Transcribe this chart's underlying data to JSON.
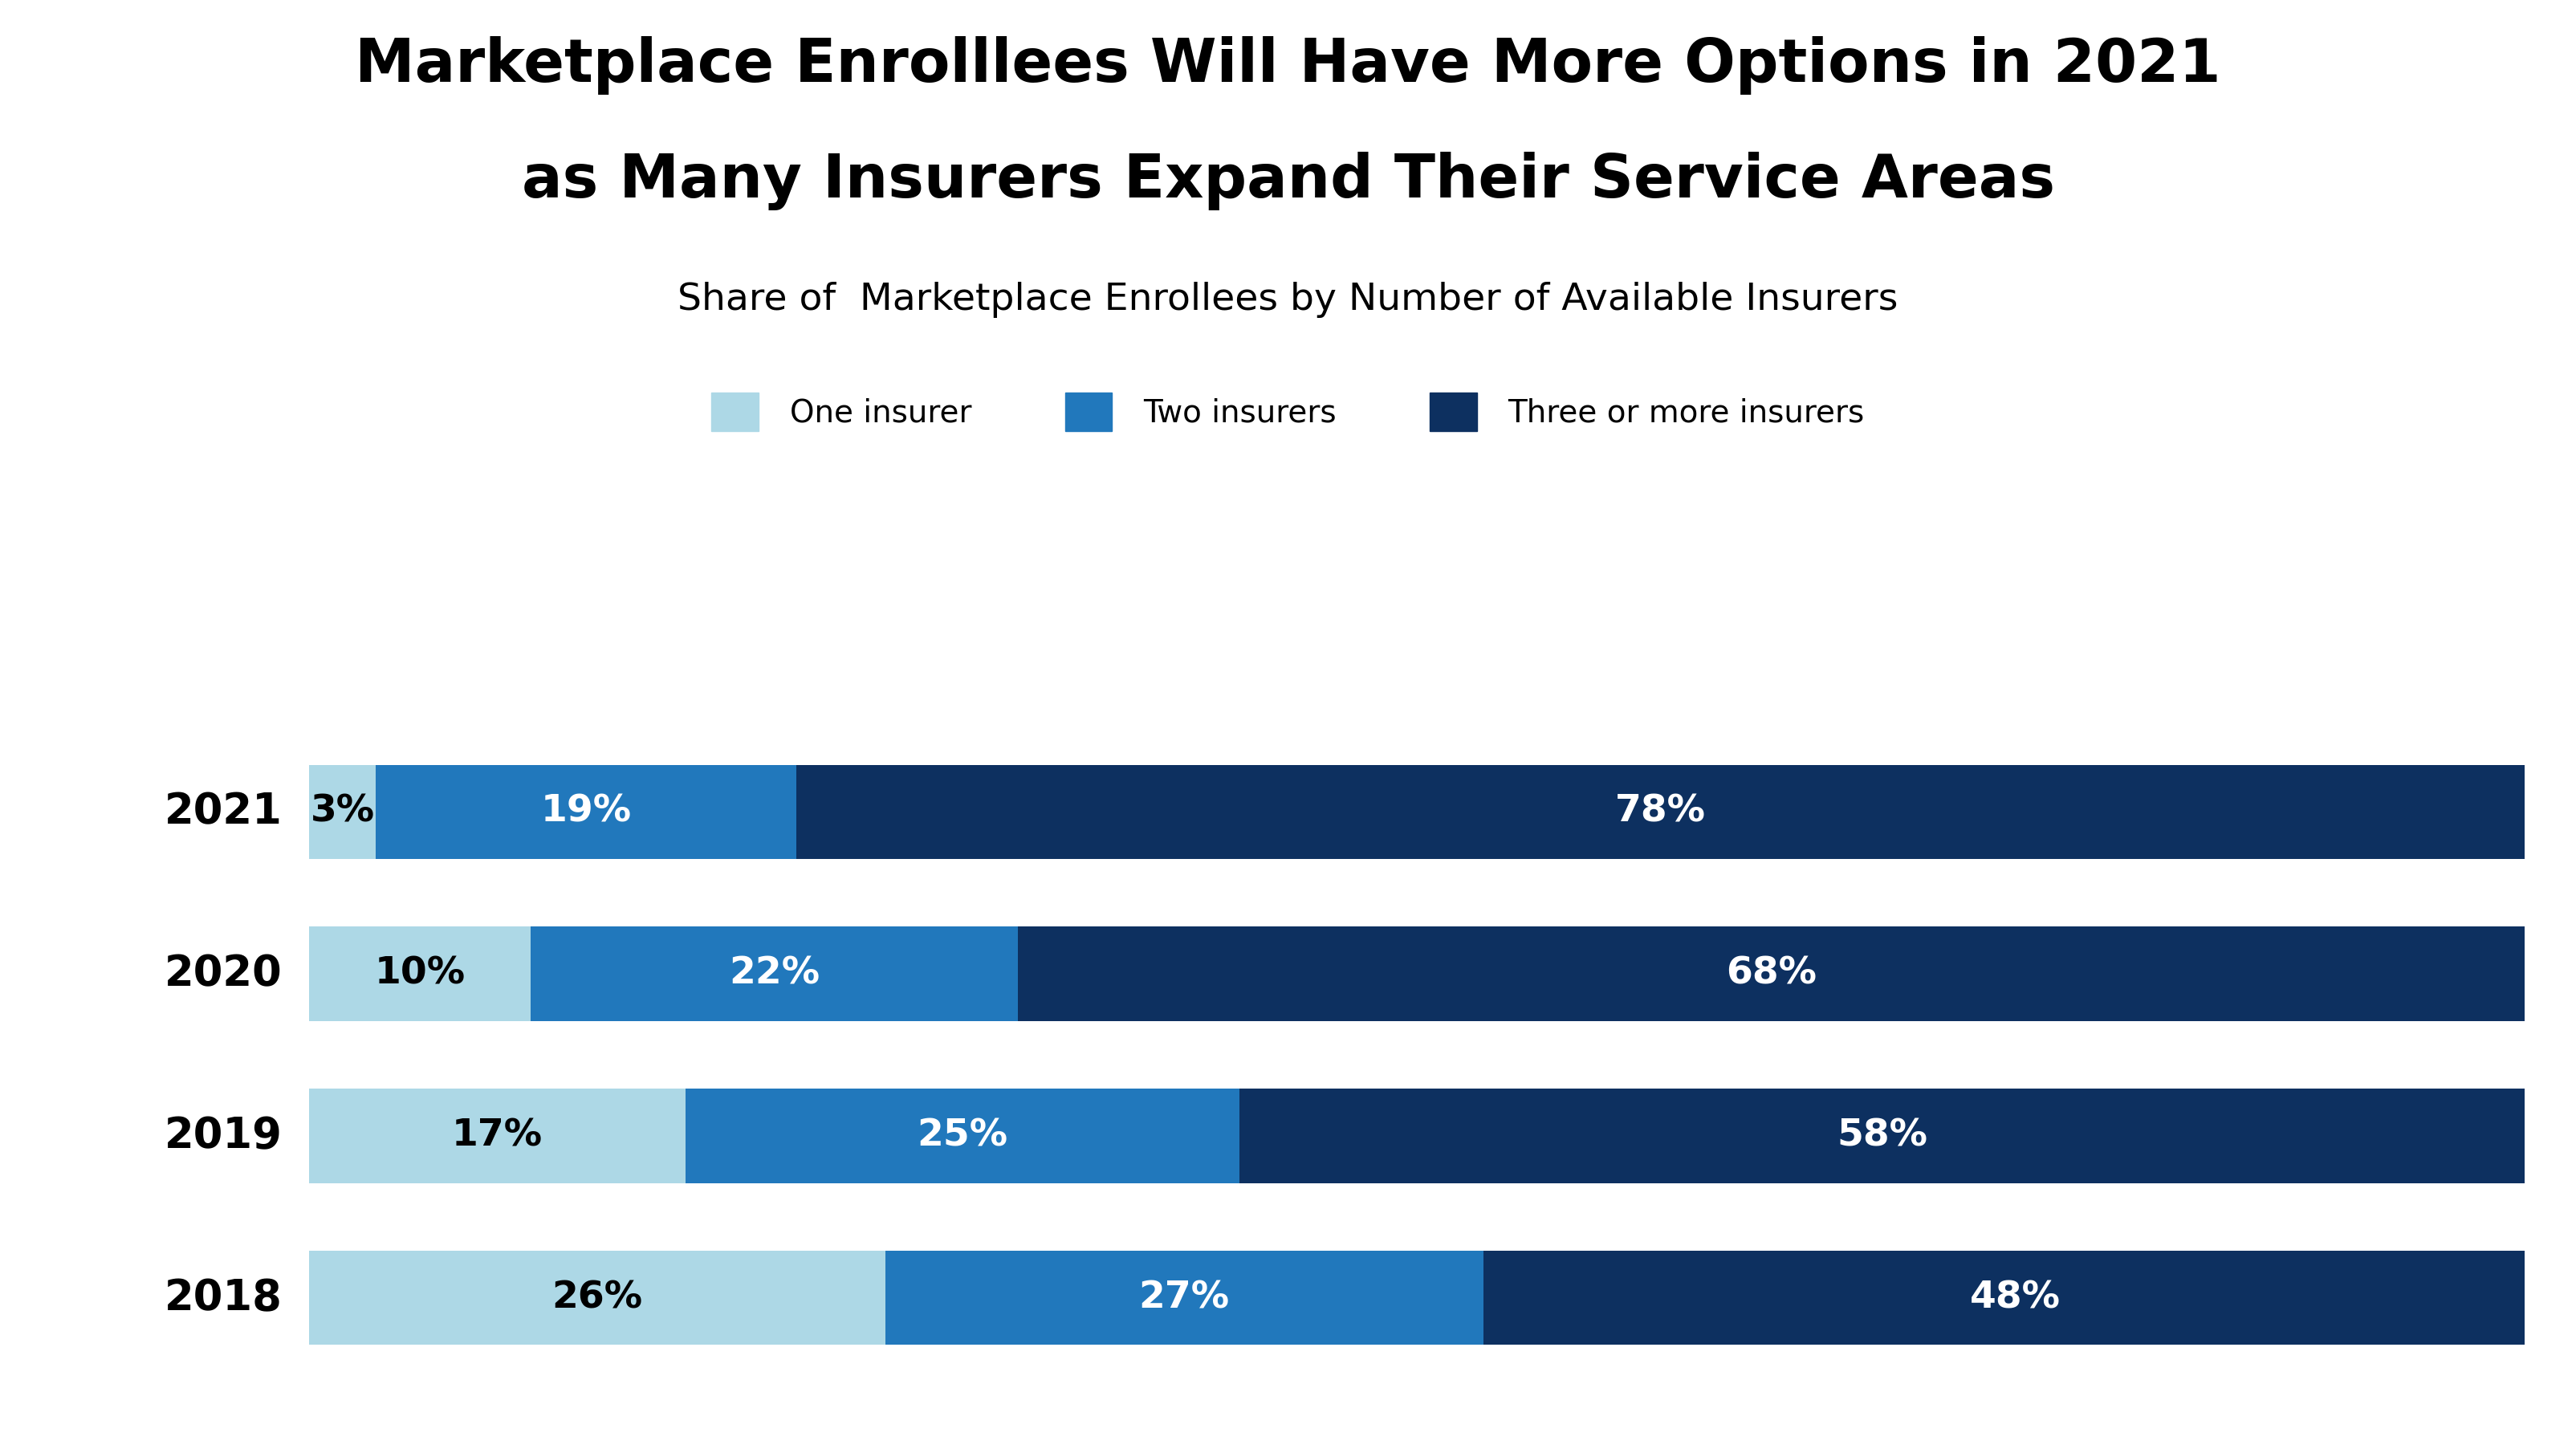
{
  "title_line1": "Marketplace Enrolllees Will Have More Options in 2021",
  "title_line2": "as Many Insurers Expand Their Service Areas",
  "subtitle": "Share of  Marketplace Enrollees by Number of Available Insurers",
  "years": [
    "2021",
    "2020",
    "2019",
    "2018"
  ],
  "one_insurer": [
    3,
    10,
    17,
    26
  ],
  "two_insurers": [
    19,
    22,
    25,
    27
  ],
  "three_plus": [
    78,
    68,
    58,
    48
  ],
  "color_one": "#add8e6",
  "color_two": "#2178bc",
  "color_three": "#0d3060",
  "legend_labels": [
    "One insurer",
    "Two insurers",
    "Three or more insurers"
  ],
  "background_color": "#ffffff",
  "bar_height": 0.58,
  "title_fontsize": 54,
  "subtitle_fontsize": 34,
  "year_fontsize": 38,
  "label_fontsize": 34,
  "legend_fontsize": 28
}
